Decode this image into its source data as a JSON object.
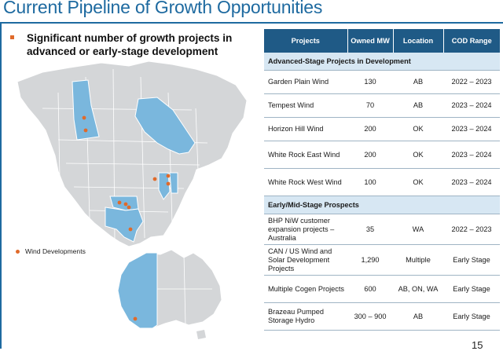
{
  "slide": {
    "title": "Current Pipeline of Growth Opportunities",
    "bullet": "Significant number of growth projects in advanced or early-stage development",
    "legend_label": "Wind Developments",
    "page_number": "15",
    "colors": {
      "accent": "#1e6aa0",
      "header_bg": "#1f5a86",
      "section_bg": "#d7e7f3",
      "marker": "#e06a2a",
      "highlight_region": "#7ab7dd",
      "land": "#d4d6d8"
    }
  },
  "table": {
    "headers": [
      "Projects",
      "Owned MW",
      "Location",
      "COD Range"
    ],
    "sections": [
      {
        "label": "Advanced-Stage Projects in Development",
        "rows": [
          [
            "Garden Plain Wind",
            "130",
            "AB",
            "2022 – 2023"
          ],
          [
            "Tempest Wind",
            "70",
            "AB",
            "2023 – 2024"
          ],
          [
            "Horizon Hill Wind",
            "200",
            "OK",
            "2023 – 2024"
          ],
          [
            "White Rock East Wind",
            "200",
            "OK",
            "2023 – 2024"
          ],
          [
            "White Rock West Wind",
            "100",
            "OK",
            "2023 – 2024"
          ]
        ]
      },
      {
        "label": "Early/Mid-Stage Prospects",
        "rows": [
          [
            "BHP NiW customer expansion projects – Australia",
            "35",
            "WA",
            "2022 – 2023"
          ],
          [
            "CAN / US Wind and Solar Development Projects",
            "1,290",
            "Multiple",
            "Early Stage"
          ],
          [
            "Multiple Cogen Projects",
            "600",
            "AB, ON, WA",
            "Early Stage"
          ],
          [
            "Brazeau Pumped Storage Hydro",
            "300 – 900",
            "AB",
            "Early Stage"
          ]
        ]
      }
    ]
  }
}
